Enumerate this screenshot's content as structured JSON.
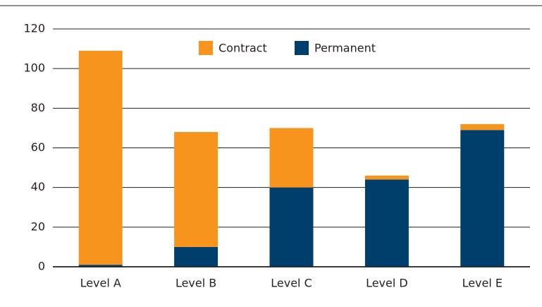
{
  "chart_data": {
    "type": "stacked_bar",
    "categories": [
      "Level A",
      "Level B",
      "Level C",
      "Level D",
      "Level E"
    ],
    "series": [
      {
        "name": "Contract",
        "color": "#f7941d",
        "values": [
          108,
          58,
          30,
          2,
          3
        ]
      },
      {
        "name": "Permanent",
        "color": "#003f6b",
        "values": [
          1,
          10,
          40,
          44,
          69
        ]
      }
    ],
    "ylim": [
      0,
      120
    ],
    "yticks": [
      0,
      20,
      40,
      60,
      80,
      100,
      120
    ],
    "grid": true,
    "legend": "top"
  }
}
